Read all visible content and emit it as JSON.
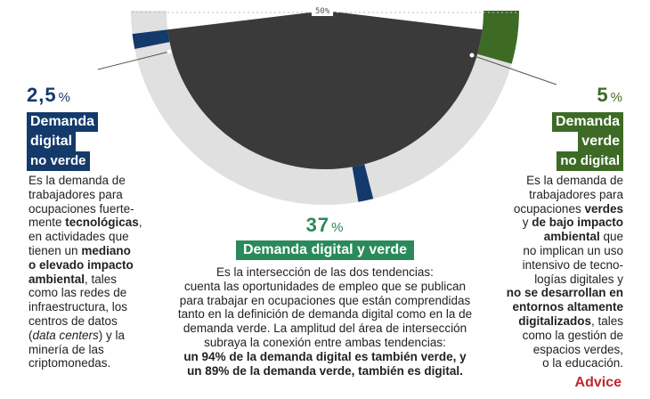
{
  "chart_data": {
    "type": "pie",
    "variant": "half-donut",
    "center_label": "50%",
    "slices": [
      {
        "name": "Demanda digital no verde",
        "value": 2.5,
        "display": "2,5",
        "color": "#143a6b"
      },
      {
        "name": "Demanda digital y verde",
        "value": 37,
        "display": "37",
        "color": "#1c1c1c"
      },
      {
        "name": "Demanda verde no digital",
        "value": 5,
        "display": "5",
        "color": "#3d6b25"
      }
    ],
    "remainder_color": "#e0e0e0"
  },
  "left": {
    "value": "2,5",
    "pct": "%",
    "title_line1": "Demanda",
    "title_line2": "digital",
    "title_line3": "no verde",
    "desc": [
      {
        "t": "Es la demanda de",
        "b": false
      },
      {
        "t": "trabajadores para",
        "b": false
      },
      {
        "t": "ocupaciones fuerte-",
        "b": false
      },
      {
        "t": "mente ",
        "b": false,
        "bold": "tecnológicas",
        "rest": ","
      },
      {
        "t": "en actividades que",
        "b": false
      },
      {
        "t": "tienen un ",
        "b": false,
        "bold": "mediano",
        "rest": ""
      },
      {
        "t": "",
        "b": true,
        "bold": "o elevado impacto",
        "rest": ""
      },
      {
        "t": "",
        "b": true,
        "bold": "ambiental",
        "rest": ", tales"
      },
      {
        "t": "como las redes de",
        "b": false
      },
      {
        "t": "infraestructura, los",
        "b": false
      },
      {
        "t": "centros de datos",
        "b": false
      },
      {
        "t": "(",
        "b": false,
        "italic": "data centers",
        "rest": ") y la"
      },
      {
        "t": "minería de las",
        "b": false
      },
      {
        "t": "criptomonedas.",
        "b": false
      }
    ]
  },
  "right": {
    "value": "5",
    "pct": "%",
    "title_line1": "Demanda",
    "title_line2": "verde",
    "title_line3": "no digital",
    "desc": [
      {
        "t": "Es la demanda de",
        "b": false
      },
      {
        "t": "trabajadores para",
        "b": false
      },
      {
        "t": "ocupaciones ",
        "b": false,
        "bold": "verdes",
        "rest": ""
      },
      {
        "t": "y ",
        "b": false,
        "bold": "de bajo impacto",
        "rest": ""
      },
      {
        "t": "",
        "b": true,
        "bold": "ambiental",
        "rest": " que"
      },
      {
        "t": "no implican un uso",
        "b": false
      },
      {
        "t": "intensivo de tecno-",
        "b": false
      },
      {
        "t": "logías digitales y",
        "b": false
      },
      {
        "t": "",
        "b": true,
        "bold": "no se desarrollan en",
        "rest": ""
      },
      {
        "t": "",
        "b": true,
        "bold": "entornos altamente",
        "rest": ""
      },
      {
        "t": "",
        "b": true,
        "bold": "digitalizados",
        "rest": ", tales"
      },
      {
        "t": "como la gestión de",
        "b": false
      },
      {
        "t": "espacios verdes,",
        "b": false
      },
      {
        "t": "o la educación.",
        "b": false
      }
    ]
  },
  "center": {
    "value": "37",
    "pct": "%",
    "title": "Demanda digital y verde",
    "desc": [
      {
        "t": "Es la intersección de las dos tendencias:"
      },
      {
        "t": "cuenta las oportunidades de empleo que se publican"
      },
      {
        "t": "para trabajar en ocupaciones que están comprendidas"
      },
      {
        "t": "tanto en la definición de demanda digital como en la de"
      },
      {
        "t": "demanda verde. La amplitud del área de intersección"
      },
      {
        "t": "subraya la conexión entre ambas tendencias:"
      },
      {
        "t": "",
        "bold": "un 94% de la demanda digital es también verde, y"
      },
      {
        "t": "",
        "bold": "un 89% de la demanda verde, también es digital."
      }
    ]
  },
  "brand": "Advice"
}
